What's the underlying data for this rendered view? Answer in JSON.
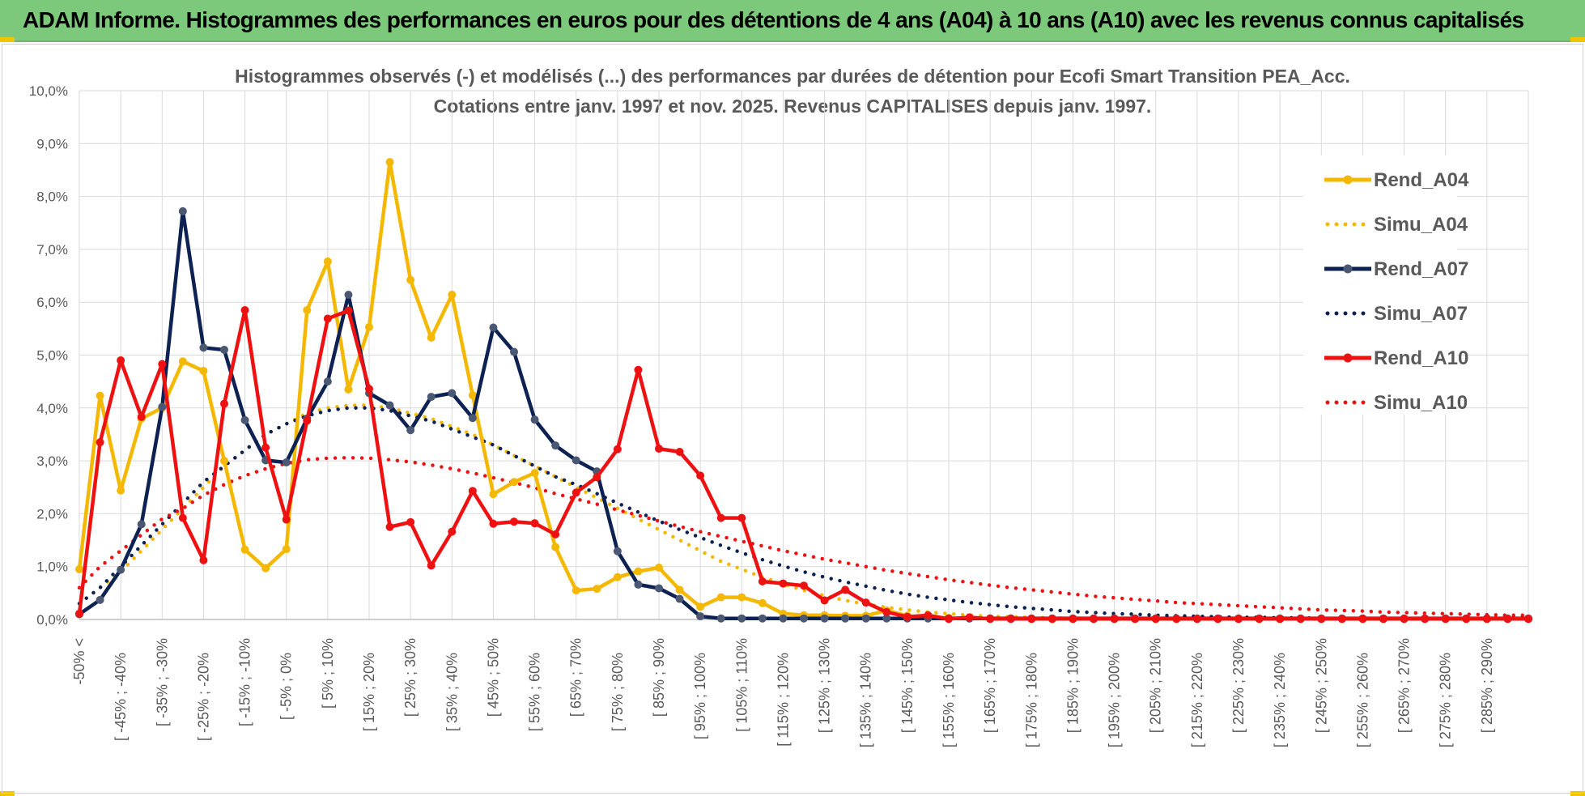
{
  "banner": {
    "title": "ADAM Informe. Histogrammes des performances en euros pour des détentions de 4 ans (A04) à 10 ans (A10) avec les revenus connus capitalisés"
  },
  "colors": {
    "banner_bg": "#7dc97b",
    "A04": "#f5b800",
    "A07": "#0d2152",
    "A10": "#ee1111",
    "grid": "#d9d9d9",
    "text": "#595959"
  },
  "chart_data": {
    "type": "line",
    "title": "Histogrammes observés (-) et modélisés (...) des performances par durées de détention pour Ecofi Smart Transition PEA_Acc.",
    "subtitle": "Cotations entre janv. 1997 et nov. 2025. Revenus CAPITALISES depuis janv. 1997.",
    "xlabel": "",
    "ylabel": "",
    "ylim": [
      0,
      0.1
    ],
    "y_ticks": [
      "0,0%",
      "1,0%",
      "2,0%",
      "3,0%",
      "4,0%",
      "5,0%",
      "6,0%",
      "7,0%",
      "8,0%",
      "9,0%",
      "10,0%"
    ],
    "x_tick_labels": [
      "-50% <",
      "[ -45% ; -40%",
      "[ -35% ; -30%",
      "[ -25% ; -20%",
      "[ -15% ; -10%",
      "[ -5% ; 0%",
      "[ 5% ; 10%",
      "[ 15% ; 20%",
      "[ 25% ; 30%",
      "[ 35% ; 40%",
      "[ 45% ; 50%",
      "[ 55% ; 60%",
      "[ 65% ; 70%",
      "[ 75% ; 80%",
      "[ 85% ; 90%",
      "[ 95% ; 100%",
      "[ 105% ; 110%",
      "[ 115% ; 120%",
      "[ 125% ; 130%",
      "[ 135% ; 140%",
      "[ 145% ; 150%",
      "[ 155% ; 160%",
      "[ 165% ; 170%",
      "[ 175% ; 180%",
      "[ 185% ; 190%",
      "[ 195% ; 200%",
      "[ 205% ; 210%",
      "[ 215% ; 220%",
      "[ 225% ; 230%",
      "[ 235% ; 240%",
      "[ 245% ; 250%",
      "[ 255% ; 260%",
      "[ 265% ; 270%",
      "[ 275% ; 280%",
      "[ 285% ; 290%"
    ],
    "grid": true,
    "legend_position": "right",
    "series": [
      {
        "name": "Rend_A04",
        "style": "solid",
        "color": "#f5b800",
        "values": [
          0.0095,
          0.0423,
          0.0244,
          0.038,
          0.04,
          0.0488,
          0.047,
          0.03,
          0.0132,
          0.0097,
          0.0133,
          0.0585,
          0.0677,
          0.0435,
          0.0553,
          0.0865,
          0.0642,
          0.0533,
          0.0614,
          0.0424,
          0.0237,
          0.026,
          0.0277,
          0.0137,
          0.0055,
          0.0058,
          0.008,
          0.0091,
          0.0098,
          0.0056,
          0.0024,
          0.0042,
          0.0042,
          0.0031,
          0.0011,
          0.0008,
          0.0008,
          0.0007,
          0.0007,
          0.0017,
          0.0007,
          0.0003,
          0.0003,
          0.0002,
          0.0002,
          0.0002,
          0.0001,
          0.0001,
          0.0001,
          0.0001,
          0.0001,
          0.0001,
          0.0001,
          0.0001,
          0.0001,
          0.0001,
          0.0001,
          0.0001,
          0.0001,
          0.0001,
          0.0001,
          0.0001,
          0.0001,
          0.0001,
          0.0001,
          0.0001,
          0.0001,
          0.0001,
          0.0001,
          0.0001,
          0.0001
        ]
      },
      {
        "name": "Simu_A04",
        "style": "dotted",
        "color": "#f5b800",
        "values": [
          0.003,
          0.006,
          0.009,
          0.013,
          0.017,
          0.021,
          0.025,
          0.029,
          0.032,
          0.035,
          0.037,
          0.039,
          0.04,
          0.0405,
          0.0405,
          0.04,
          0.039,
          0.038,
          0.0365,
          0.035,
          0.033,
          0.031,
          0.029,
          0.027,
          0.025,
          0.023,
          0.021,
          0.019,
          0.017,
          0.015,
          0.013,
          0.011,
          0.0095,
          0.008,
          0.0067,
          0.0055,
          0.0045,
          0.0036,
          0.0029,
          0.0023,
          0.0018,
          0.0014,
          0.0011,
          0.0008,
          0.0006,
          0.0005,
          0.0004,
          0.0003,
          0.0002,
          0.0002,
          0.0001,
          0.0001,
          0.0001,
          0.0001,
          0.0001,
          0.0001,
          0.0001,
          0.0001,
          0.0001,
          0.0001,
          0.0001,
          0.0001,
          0.0001,
          0.0001,
          0.0001,
          0.0001,
          0.0001,
          0.0001,
          0.0001,
          0.0001,
          0.0001
        ]
      },
      {
        "name": "Rend_A07",
        "style": "solid",
        "color": "#0d2152",
        "values": [
          0.001,
          0.0037,
          0.0094,
          0.018,
          0.0402,
          0.0772,
          0.0514,
          0.051,
          0.0377,
          0.0301,
          0.0297,
          0.038,
          0.045,
          0.0614,
          0.0428,
          0.0405,
          0.0358,
          0.0421,
          0.0428,
          0.0381,
          0.0552,
          0.0506,
          0.0378,
          0.0329,
          0.0301,
          0.028,
          0.0129,
          0.0066,
          0.0059,
          0.0039,
          0.0006,
          0.0002,
          0.0002,
          0.0002,
          0.0002,
          0.0002,
          0.0002,
          0.0002,
          0.0002,
          0.0002,
          0.0002,
          0.0002,
          0.0002,
          0.0002,
          0.0002,
          0.0002,
          0.0002,
          0.0002,
          0.0002,
          0.0002,
          0.0002,
          0.0002,
          0.0002,
          0.0002,
          0.0002,
          0.0002,
          0.0002,
          0.0002,
          0.0002,
          0.0002,
          0.0002,
          0.0002,
          0.0002,
          0.0002,
          0.0002,
          0.0002,
          0.0002,
          0.0002,
          0.0002,
          0.0002,
          0.0002
        ]
      },
      {
        "name": "Simu_A07",
        "style": "dotted",
        "color": "#0d2152",
        "values": [
          0.003,
          0.006,
          0.01,
          0.014,
          0.018,
          0.022,
          0.026,
          0.029,
          0.032,
          0.035,
          0.037,
          0.0385,
          0.0395,
          0.04,
          0.04,
          0.0395,
          0.0385,
          0.0375,
          0.036,
          0.0345,
          0.033,
          0.031,
          0.029,
          0.027,
          0.0255,
          0.0238,
          0.022,
          0.0203,
          0.0186,
          0.017,
          0.0155,
          0.014,
          0.0126,
          0.0113,
          0.0101,
          0.009,
          0.008,
          0.0071,
          0.0063,
          0.0055,
          0.0048,
          0.0042,
          0.0037,
          0.0032,
          0.0028,
          0.0024,
          0.0021,
          0.0018,
          0.0015,
          0.0013,
          0.0011,
          0.001,
          0.0008,
          0.0007,
          0.0006,
          0.0005,
          0.0004,
          0.0004,
          0.0003,
          0.0003,
          0.0002,
          0.0002,
          0.0002,
          0.0001,
          0.0001,
          0.0001,
          0.0001,
          0.0001,
          0.0001,
          0.0001,
          0.0001
        ]
      },
      {
        "name": "Rend_A10",
        "style": "solid",
        "color": "#ee1111",
        "values": [
          0.0011,
          0.0335,
          0.049,
          0.0383,
          0.0483,
          0.0192,
          0.0112,
          0.0408,
          0.0585,
          0.0325,
          0.0189,
          0.0376,
          0.0569,
          0.0584,
          0.0436,
          0.0175,
          0.0184,
          0.0102,
          0.0166,
          0.0243,
          0.0181,
          0.0185,
          0.0182,
          0.0161,
          0.024,
          0.0269,
          0.0322,
          0.0472,
          0.0323,
          0.0317,
          0.0272,
          0.0192,
          0.0192,
          0.0072,
          0.0068,
          0.0064,
          0.0036,
          0.0056,
          0.0032,
          0.0014,
          0.0005,
          0.0008,
          0.0001,
          0.0004,
          0.0001,
          0.0001,
          0.0001,
          0.0001,
          0.0001,
          0.0001,
          0.0001,
          0.0001,
          0.0001,
          0.0001,
          0.0001,
          0.0001,
          0.0001,
          0.0001,
          0.0001,
          0.0001,
          0.0001,
          0.0001,
          0.0001,
          0.0001,
          0.0001,
          0.0001,
          0.0001,
          0.0001,
          0.0001,
          0.0001,
          0.0001
        ]
      },
      {
        "name": "Simu_A10",
        "style": "dotted",
        "color": "#ee1111",
        "values": [
          0.006,
          0.01,
          0.013,
          0.016,
          0.019,
          0.021,
          0.0235,
          0.0255,
          0.0272,
          0.0285,
          0.0295,
          0.0302,
          0.0305,
          0.0306,
          0.0305,
          0.0302,
          0.0298,
          0.0292,
          0.0285,
          0.0277,
          0.0268,
          0.0259,
          0.0249,
          0.0238,
          0.0228,
          0.0218,
          0.0207,
          0.0197,
          0.0186,
          0.0176,
          0.0166,
          0.0157,
          0.0148,
          0.0139,
          0.013,
          0.0122,
          0.0114,
          0.0107,
          0.01,
          0.0093,
          0.0087,
          0.0081,
          0.0075,
          0.007,
          0.0065,
          0.006,
          0.0056,
          0.0052,
          0.0048,
          0.0044,
          0.0041,
          0.0038,
          0.0035,
          0.0032,
          0.003,
          0.0028,
          0.0026,
          0.0024,
          0.0022,
          0.002,
          0.0018,
          0.0017,
          0.0016,
          0.0014,
          0.0013,
          0.0012,
          0.0011,
          0.001,
          0.0009,
          0.0008,
          0.0008
        ]
      }
    ]
  }
}
